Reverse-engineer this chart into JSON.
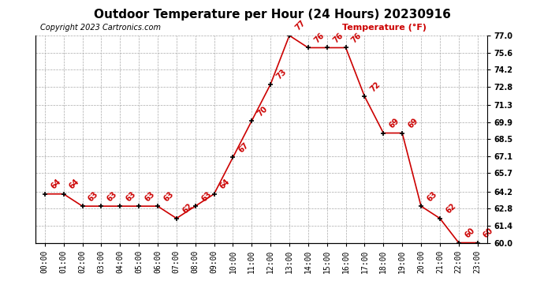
{
  "title": "Outdoor Temperature per Hour (24 Hours) 20230916",
  "copyright_text": "Copyright 2023 Cartronics.com",
  "legend_text": "Temperature (°F)",
  "hours": [
    "00:00",
    "01:00",
    "02:00",
    "03:00",
    "04:00",
    "05:00",
    "06:00",
    "07:00",
    "08:00",
    "09:00",
    "10:00",
    "11:00",
    "12:00",
    "13:00",
    "14:00",
    "15:00",
    "16:00",
    "17:00",
    "18:00",
    "19:00",
    "20:00",
    "21:00",
    "22:00",
    "23:00"
  ],
  "temps": [
    64,
    64,
    63,
    63,
    63,
    63,
    63,
    62,
    63,
    64,
    67,
    70,
    73,
    77,
    76,
    76,
    76,
    72,
    69,
    69,
    63,
    62,
    60,
    60
  ],
  "line_color": "#cc0000",
  "marker_color": "#000000",
  "label_color": "#cc0000",
  "grid_color": "#aaaaaa",
  "background_color": "#ffffff",
  "title_fontsize": 11,
  "tick_fontsize": 7,
  "annot_fontsize": 7,
  "copyright_fontsize": 7,
  "legend_fontsize": 8,
  "ylim_min": 60.0,
  "ylim_max": 77.0,
  "yticks": [
    60.0,
    61.4,
    62.8,
    64.2,
    65.7,
    67.1,
    68.5,
    69.9,
    71.3,
    72.8,
    74.2,
    75.6,
    77.0
  ]
}
